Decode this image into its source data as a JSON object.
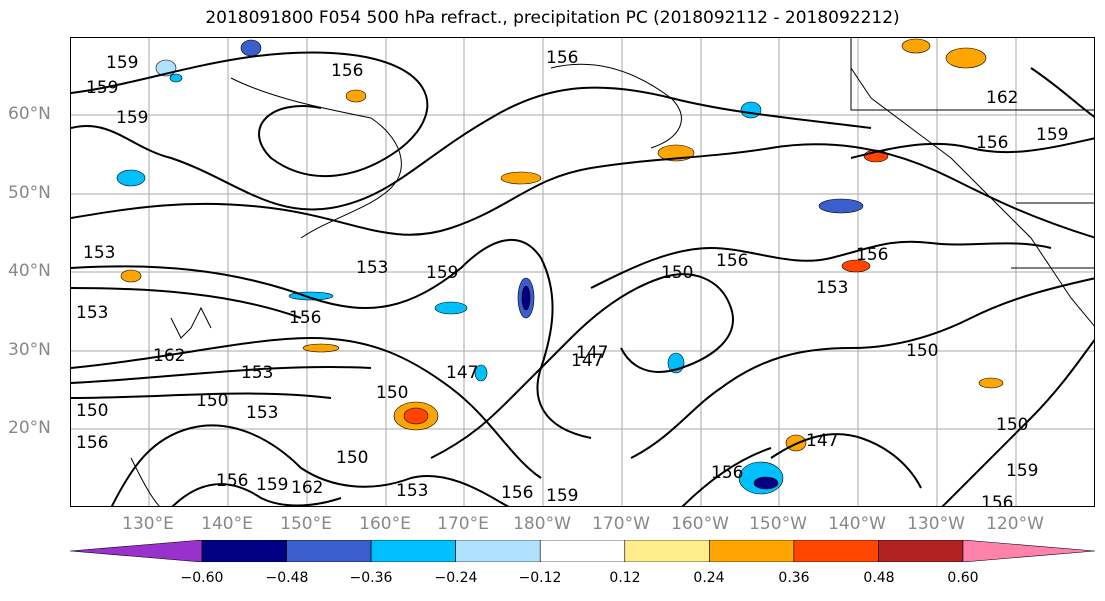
{
  "title": "2018091800 F054 500 hPa refract., precipitation PC (2018092112 - 2018092212)",
  "lat_labels": [
    "60°N",
    "50°N",
    "40°N",
    "30°N",
    "20°N"
  ],
  "lon_labels": [
    "130°E",
    "140°E",
    "150°E",
    "160°E",
    "170°E",
    "180°W",
    "170°W",
    "160°W",
    "150°W",
    "140°W",
    "130°W",
    "120°W"
  ],
  "colorbar": {
    "ticks": [
      "−0.60",
      "−0.48",
      "−0.36",
      "−0.24",
      "−0.12",
      "0.12",
      "0.24",
      "0.36",
      "0.48",
      "0.60"
    ],
    "colors": [
      "#9932cc",
      "#000080",
      "#3a5fcd",
      "#00bfff",
      "#b0e2ff",
      "#ffffff",
      "#ffec8b",
      "#ffa500",
      "#ff4500",
      "#b22222",
      "#ff82ab"
    ]
  },
  "contour_labels": [
    "159",
    "159",
    "159",
    "156",
    "156",
    "162",
    "159",
    "156",
    "153",
    "159",
    "150",
    "156",
    "153",
    "156",
    "153",
    "156",
    "162",
    "153",
    "150",
    "150",
    "147",
    "147",
    "147",
    "150",
    "153",
    "150",
    "156",
    "159",
    "162",
    "156",
    "153",
    "159",
    "156",
    "159",
    "150",
    "156",
    "147",
    "153",
    "150",
    "156"
  ]
}
